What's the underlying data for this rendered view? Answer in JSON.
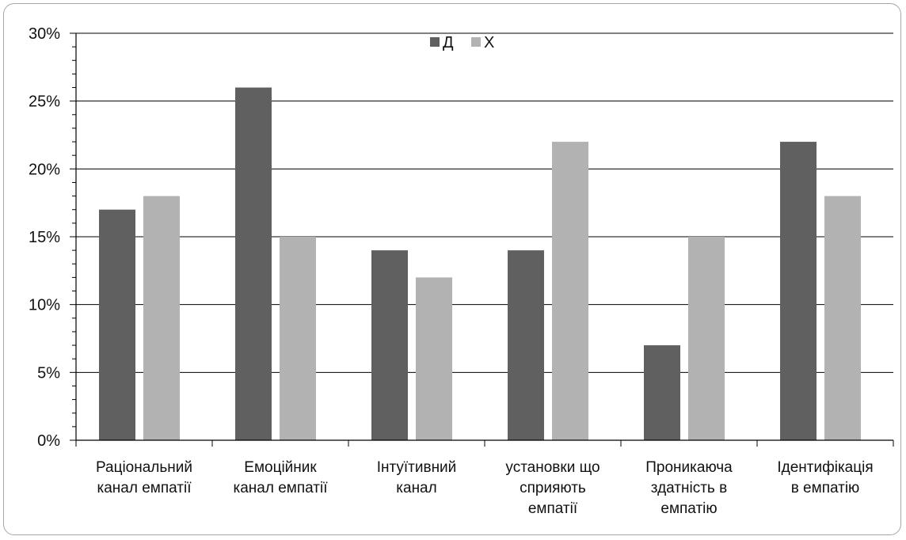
{
  "chart_data": {
    "type": "bar",
    "categories": [
      [
        "Раціональний",
        "канал емпатії"
      ],
      [
        "Емоційник",
        "канал емпатії"
      ],
      [
        "Інтуїтивний",
        "канал"
      ],
      [
        "установки що",
        "сприяють",
        "емпатії"
      ],
      [
        "Проникаюча",
        "здатність в",
        "емпатію"
      ],
      [
        "Ідентифікація",
        "в емпатію"
      ]
    ],
    "series": [
      {
        "name": "Д",
        "color": "#606060",
        "values": [
          17,
          26,
          14,
          14,
          7,
          22
        ]
      },
      {
        "name": "Х",
        "color": "#b2b2b2",
        "values": [
          18,
          15,
          12,
          22,
          15,
          18
        ]
      }
    ],
    "ylim": [
      0,
      30
    ],
    "yticks": [
      {
        "value": 0,
        "label": "0%"
      },
      {
        "value": 5,
        "label": "5%"
      },
      {
        "value": 10,
        "label": "10%"
      },
      {
        "value": 15,
        "label": "15%"
      },
      {
        "value": 20,
        "label": "20%"
      },
      {
        "value": 25,
        "label": "25%"
      },
      {
        "value": 30,
        "label": "30%"
      }
    ],
    "grid": true,
    "legend_position": "top-center",
    "title": "",
    "xlabel": "",
    "ylabel": ""
  }
}
